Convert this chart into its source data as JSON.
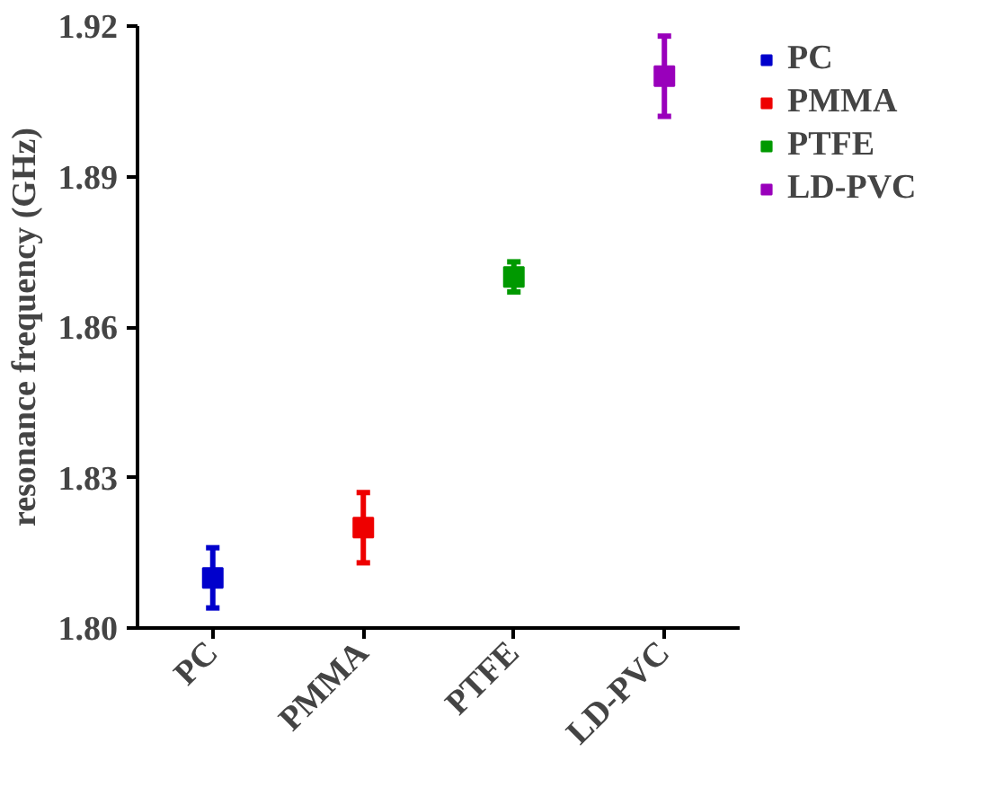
{
  "chart_data": {
    "type": "scatter",
    "ylabel": "resonance frequency (GHz)",
    "categories": [
      "PC",
      "PMMA",
      "PTFE",
      "LD-PVC"
    ],
    "series": [
      {
        "name": "PC",
        "color": "#0000cc",
        "values": [
          1.81,
          null,
          null,
          null
        ],
        "errors": [
          0.006,
          null,
          null,
          null
        ]
      },
      {
        "name": "PMMA",
        "color": "#ee0000",
        "values": [
          null,
          1.82,
          null,
          null
        ],
        "errors": [
          null,
          0.007,
          null,
          null
        ]
      },
      {
        "name": "PTFE",
        "color": "#009900",
        "values": [
          null,
          null,
          1.87,
          null
        ],
        "errors": [
          null,
          null,
          0.003,
          null
        ]
      },
      {
        "name": "LD-PVC",
        "color": "#9900bb",
        "values": [
          null,
          null,
          null,
          1.91
        ],
        "errors": [
          null,
          null,
          null,
          0.008
        ]
      }
    ],
    "ylim": [
      1.8,
      1.92
    ],
    "yticks": [
      {
        "value": 1.8,
        "label": "1.80"
      },
      {
        "value": 1.83,
        "label": "1.83"
      },
      {
        "value": 1.86,
        "label": "1.86"
      },
      {
        "value": 1.89,
        "label": "1.89"
      },
      {
        "value": 1.92,
        "label": "1.92"
      }
    ],
    "grid": false,
    "legend": "top right",
    "marker": "square"
  }
}
